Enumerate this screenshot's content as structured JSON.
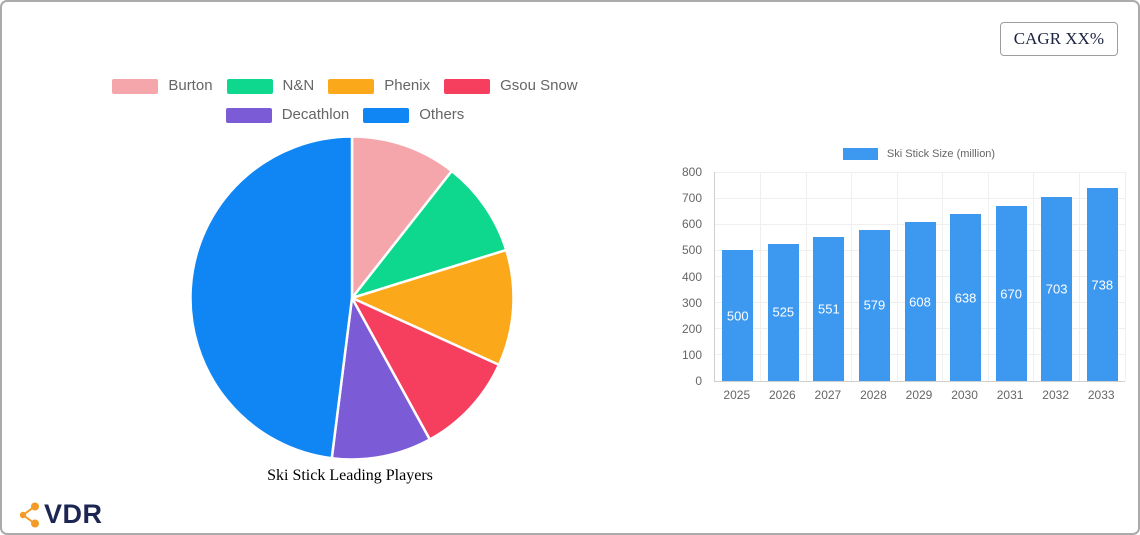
{
  "header": {
    "cagr_badge": "CAGR XX%"
  },
  "logo": {
    "text": "VDR",
    "icon_color": "#F49A26",
    "text_color": "#1B2653"
  },
  "chart_data": [
    {
      "type": "pie",
      "title": "Ski Stick Leading Players",
      "labels": [
        "Burton",
        "N&N",
        "Phenix",
        "Gsou Snow",
        "Decathlon",
        "Others"
      ],
      "values": [
        10.6,
        9.6,
        11.6,
        10.2,
        10.0,
        48.0
      ],
      "colors": [
        "#F4A6AB",
        "#0DD88D",
        "#FBA91A",
        "#F63E5E",
        "#7C5CD6",
        "#1086F5"
      ],
      "legend_position": "top",
      "legend_row_counts": [
        4,
        2
      ],
      "start_angle_deg": 0,
      "direction": "clockwise",
      "slice_border_color": "#ffffff"
    },
    {
      "type": "bar",
      "legend": "Ski Stick Size (million)",
      "categories": [
        "2025",
        "2026",
        "2027",
        "2028",
        "2029",
        "2030",
        "2031",
        "2032",
        "2033"
      ],
      "values": [
        500,
        525,
        551,
        579,
        608,
        638,
        670,
        703,
        738
      ],
      "bar_color": "#3D99F0",
      "value_label_color": "#ffffff",
      "ylim": [
        0,
        800
      ],
      "ytick_step": 100,
      "grid": true,
      "legend_position": "top"
    }
  ]
}
